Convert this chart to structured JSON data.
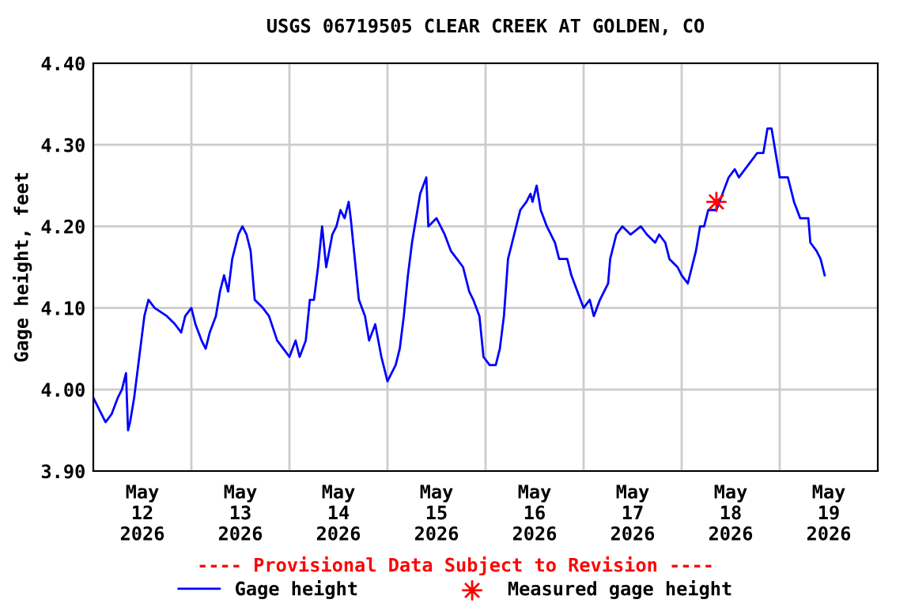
{
  "chart_data": {
    "type": "line",
    "title": "USGS 06719505 CLEAR CREEK AT GOLDEN, CO",
    "ylabel": "Gage height, feet",
    "annotations": [
      "---- Provisional Data Subject to Revision ----"
    ],
    "xlim": [
      "2026-05-12T00:00",
      "2026-05-20T00:00"
    ],
    "xticks": [
      {
        "value": "2026-05-12T12:00",
        "label": "May\n12\n2026"
      },
      {
        "value": "2026-05-13T00:00",
        "label": null
      },
      {
        "value": "2026-05-13T12:00",
        "label": "May\n13\n2026"
      },
      {
        "value": "2026-05-14T00:00",
        "label": null
      },
      {
        "value": "2026-05-14T12:00",
        "label": "May\n14\n2026"
      },
      {
        "value": "2026-05-15T00:00",
        "label": null
      },
      {
        "value": "2026-05-15T12:00",
        "label": "May\n15\n2026"
      },
      {
        "value": "2026-05-16T00:00",
        "label": null
      },
      {
        "value": "2026-05-16T12:00",
        "label": "May\n16\n2026"
      },
      {
        "value": "2026-05-17T00:00",
        "label": null
      },
      {
        "value": "2026-05-17T12:00",
        "label": "May\n17\n2026"
      },
      {
        "value": "2026-05-18T00:00",
        "label": null
      },
      {
        "value": "2026-05-18T12:00",
        "label": "May\n18\n2026"
      },
      {
        "value": "2026-05-19T00:00",
        "label": null
      },
      {
        "value": "2026-05-19T12:00",
        "label": "May\n19\n2026"
      }
    ],
    "ylim": [
      3.9,
      4.4
    ],
    "yticks": [
      {
        "value": 3.9,
        "label": "3.90"
      },
      {
        "value": 4.0,
        "label": "4.00"
      },
      {
        "value": 4.1,
        "label": "4.10"
      },
      {
        "value": 4.2,
        "label": "4.20"
      },
      {
        "value": 4.3,
        "label": "4.30"
      },
      {
        "value": 4.4,
        "label": "4.40"
      }
    ],
    "grid": true,
    "legend": "bottom",
    "series": [
      {
        "name": "Gage height",
        "color": "#0000ff",
        "x": [
          "2026-05-12T00:00",
          "2026-05-12T02:00",
          "2026-05-12T03:00",
          "2026-05-12T04:30",
          "2026-05-12T06:00",
          "2026-05-12T07:00",
          "2026-05-12T08:00",
          "2026-05-12T08:30",
          "2026-05-12T09:00",
          "2026-05-12T10:00",
          "2026-05-12T11:00",
          "2026-05-12T11:30",
          "2026-05-12T12:30",
          "2026-05-12T13:30",
          "2026-05-12T15:00",
          "2026-05-12T18:00",
          "2026-05-12T20:00",
          "2026-05-12T21:30",
          "2026-05-12T22:30",
          "2026-05-13T00:00",
          "2026-05-13T01:00",
          "2026-05-13T02:30",
          "2026-05-13T03:30",
          "2026-05-13T04:30",
          "2026-05-13T06:00",
          "2026-05-13T07:00",
          "2026-05-13T08:00",
          "2026-05-13T09:00",
          "2026-05-13T10:00",
          "2026-05-13T11:30",
          "2026-05-13T12:30",
          "2026-05-13T13:30",
          "2026-05-13T14:30",
          "2026-05-13T15:30",
          "2026-05-13T17:30",
          "2026-05-13T19:00",
          "2026-05-13T21:00",
          "2026-05-13T22:30",
          "2026-05-14T00:00",
          "2026-05-14T01:30",
          "2026-05-14T02:30",
          "2026-05-14T04:00",
          "2026-05-14T05:00",
          "2026-05-14T06:00",
          "2026-05-14T07:00",
          "2026-05-14T08:00",
          "2026-05-14T09:00",
          "2026-05-14T10:30",
          "2026-05-14T11:30",
          "2026-05-14T12:30",
          "2026-05-14T13:30",
          "2026-05-14T14:30",
          "2026-05-14T15:00",
          "2026-05-14T16:00",
          "2026-05-14T17:00",
          "2026-05-14T18:30",
          "2026-05-14T19:30",
          "2026-05-14T21:00",
          "2026-05-14T22:30",
          "2026-05-15T00:00",
          "2026-05-15T02:00",
          "2026-05-15T03:00",
          "2026-05-15T04:00",
          "2026-05-15T05:00",
          "2026-05-15T06:00",
          "2026-05-15T07:00",
          "2026-05-15T08:00",
          "2026-05-15T09:30",
          "2026-05-15T10:00",
          "2026-05-15T12:00",
          "2026-05-15T14:00",
          "2026-05-15T15:30",
          "2026-05-15T17:00",
          "2026-05-15T18:30",
          "2026-05-15T20:00",
          "2026-05-15T21:00",
          "2026-05-15T22:30",
          "2026-05-15T23:30",
          "2026-05-16T01:00",
          "2026-05-16T02:30",
          "2026-05-16T03:30",
          "2026-05-16T04:30",
          "2026-05-16T05:30",
          "2026-05-16T07:00",
          "2026-05-16T08:30",
          "2026-05-16T10:00",
          "2026-05-16T11:00",
          "2026-05-16T11:30",
          "2026-05-16T12:30",
          "2026-05-16T13:30",
          "2026-05-16T15:00",
          "2026-05-16T17:00",
          "2026-05-16T18:00",
          "2026-05-16T20:00",
          "2026-05-16T21:00",
          "2026-05-16T22:30",
          "2026-05-17T00:00",
          "2026-05-17T01:30",
          "2026-05-17T02:30",
          "2026-05-17T04:00",
          "2026-05-17T06:00",
          "2026-05-17T06:30",
          "2026-05-17T08:00",
          "2026-05-17T09:30",
          "2026-05-17T11:30",
          "2026-05-17T14:00",
          "2026-05-17T15:30",
          "2026-05-17T17:30",
          "2026-05-17T18:30",
          "2026-05-17T20:00",
          "2026-05-17T21:00",
          "2026-05-17T23:00",
          "2026-05-18T00:00",
          "2026-05-18T01:30",
          "2026-05-18T02:30",
          "2026-05-18T03:30",
          "2026-05-18T04:30",
          "2026-05-18T05:30",
          "2026-05-18T06:30",
          "2026-05-18T08:30",
          "2026-05-18T10:00",
          "2026-05-18T11:30",
          "2026-05-18T13:00",
          "2026-05-18T14:00",
          "2026-05-18T15:30",
          "2026-05-18T17:00",
          "2026-05-18T18:30",
          "2026-05-18T20:00",
          "2026-05-18T21:00",
          "2026-05-18T22:00",
          "2026-05-18T23:00",
          "2026-05-19T00:00",
          "2026-05-19T02:00",
          "2026-05-19T03:30",
          "2026-05-19T05:00",
          "2026-05-19T07:00",
          "2026-05-19T07:30",
          "2026-05-19T09:00",
          "2026-05-19T10:00",
          "2026-05-19T11:00"
        ],
        "values": [
          3.99,
          3.97,
          3.96,
          3.97,
          3.99,
          4.0,
          4.02,
          3.95,
          3.96,
          3.99,
          4.03,
          4.05,
          4.09,
          4.11,
          4.1,
          4.09,
          4.08,
          4.07,
          4.09,
          4.1,
          4.08,
          4.06,
          4.05,
          4.07,
          4.09,
          4.12,
          4.14,
          4.12,
          4.16,
          4.19,
          4.2,
          4.19,
          4.17,
          4.11,
          4.1,
          4.09,
          4.06,
          4.05,
          4.04,
          4.06,
          4.04,
          4.06,
          4.11,
          4.11,
          4.15,
          4.2,
          4.15,
          4.19,
          4.2,
          4.22,
          4.21,
          4.23,
          4.21,
          4.16,
          4.11,
          4.09,
          4.06,
          4.08,
          4.04,
          4.01,
          4.03,
          4.05,
          4.09,
          4.14,
          4.18,
          4.21,
          4.24,
          4.26,
          4.2,
          4.21,
          4.19,
          4.17,
          4.16,
          4.15,
          4.12,
          4.11,
          4.09,
          4.04,
          4.03,
          4.03,
          4.05,
          4.09,
          4.16,
          4.19,
          4.22,
          4.23,
          4.24,
          4.23,
          4.25,
          4.22,
          4.2,
          4.18,
          4.16,
          4.16,
          4.14,
          4.12,
          4.1,
          4.11,
          4.09,
          4.11,
          4.13,
          4.16,
          4.19,
          4.2,
          4.19,
          4.2,
          4.19,
          4.18,
          4.19,
          4.18,
          4.16,
          4.15,
          4.14,
          4.13,
          4.15,
          4.17,
          4.2,
          4.2,
          4.22,
          4.22,
          4.24,
          4.26,
          4.27,
          4.26,
          4.27,
          4.28,
          4.29,
          4.29,
          4.32,
          4.32,
          4.29,
          4.26,
          4.26,
          4.23,
          4.21,
          4.21,
          4.18,
          4.17,
          4.16,
          4.14
        ]
      },
      {
        "name": "Measured gage height",
        "type": "scatter",
        "marker": "star",
        "color": "#ff0000",
        "x": [
          "2026-05-18T08:30"
        ],
        "values": [
          4.23
        ]
      }
    ]
  }
}
